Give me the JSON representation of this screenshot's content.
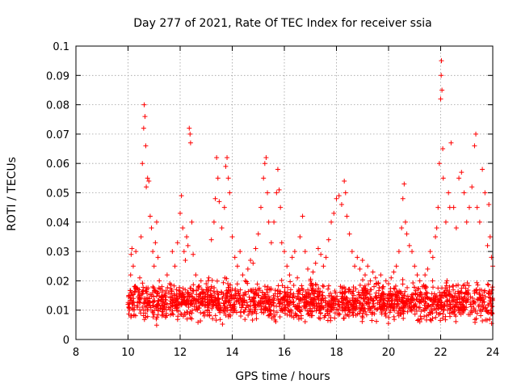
{
  "chart_data": {
    "type": "scatter",
    "title": "Day 277 of 2021, Rate Of TEC Index for receiver ssia",
    "xlabel": "GPS time / hours",
    "ylabel": "ROTI / TECUs",
    "xlim": [
      8,
      24
    ],
    "ylim": [
      0,
      0.1
    ],
    "xticks": [
      8,
      10,
      12,
      14,
      16,
      18,
      20,
      22,
      24
    ],
    "xtick_labels": [
      "8",
      "10",
      "12",
      "14",
      "16",
      "18",
      "20",
      "22",
      "24"
    ],
    "yticks": [
      0,
      0.01,
      0.02,
      0.03,
      0.04,
      0.05,
      0.06,
      0.07,
      0.08,
      0.09,
      0.1
    ],
    "ytick_labels": [
      "0",
      "0.01",
      "0.02",
      "0.03",
      "0.04",
      "0.05",
      "0.06",
      "0.07",
      "0.08",
      "0.09",
      "0.1"
    ],
    "grid": true,
    "marker": "+",
    "series": [
      {
        "name": "ROTI",
        "color": "#ff0000",
        "points": [
          [
            10.0,
            0.012
          ],
          [
            10.05,
            0.015
          ],
          [
            10.1,
            0.022
          ],
          [
            10.12,
            0.029
          ],
          [
            10.15,
            0.031
          ],
          [
            10.2,
            0.025
          ],
          [
            10.25,
            0.018
          ],
          [
            10.3,
            0.03
          ],
          [
            10.35,
            0.011
          ],
          [
            10.4,
            0.016
          ],
          [
            10.45,
            0.021
          ],
          [
            10.5,
            0.035
          ],
          [
            10.55,
            0.06
          ],
          [
            10.6,
            0.072
          ],
          [
            10.62,
            0.08
          ],
          [
            10.65,
            0.076
          ],
          [
            10.68,
            0.066
          ],
          [
            10.7,
            0.052
          ],
          [
            10.75,
            0.055
          ],
          [
            10.8,
            0.054
          ],
          [
            10.85,
            0.042
          ],
          [
            10.9,
            0.038
          ],
          [
            10.95,
            0.03
          ],
          [
            11.0,
            0.025
          ],
          [
            11.05,
            0.033
          ],
          [
            11.1,
            0.04
          ],
          [
            11.15,
            0.028
          ],
          [
            11.2,
            0.02
          ],
          [
            11.3,
            0.018
          ],
          [
            11.4,
            0.015
          ],
          [
            11.5,
            0.022
          ],
          [
            11.6,
            0.019
          ],
          [
            11.7,
            0.03
          ],
          [
            11.8,
            0.025
          ],
          [
            11.9,
            0.033
          ],
          [
            12.0,
            0.043
          ],
          [
            12.05,
            0.049
          ],
          [
            12.1,
            0.038
          ],
          [
            12.15,
            0.03
          ],
          [
            12.2,
            0.027
          ],
          [
            12.25,
            0.035
          ],
          [
            12.3,
            0.032
          ],
          [
            12.35,
            0.072
          ],
          [
            12.38,
            0.07
          ],
          [
            12.4,
            0.067
          ],
          [
            12.45,
            0.04
          ],
          [
            12.5,
            0.029
          ],
          [
            12.6,
            0.022
          ],
          [
            12.7,
            0.018
          ],
          [
            12.8,
            0.02
          ],
          [
            12.9,
            0.016
          ],
          [
            13.0,
            0.019
          ],
          [
            13.1,
            0.021
          ],
          [
            13.2,
            0.034
          ],
          [
            13.3,
            0.04
          ],
          [
            13.35,
            0.048
          ],
          [
            13.4,
            0.062
          ],
          [
            13.45,
            0.055
          ],
          [
            13.5,
            0.047
          ],
          [
            13.6,
            0.038
          ],
          [
            13.7,
            0.045
          ],
          [
            13.75,
            0.059
          ],
          [
            13.8,
            0.062
          ],
          [
            13.85,
            0.055
          ],
          [
            13.9,
            0.05
          ],
          [
            14.0,
            0.035
          ],
          [
            14.1,
            0.028
          ],
          [
            14.2,
            0.025
          ],
          [
            14.3,
            0.03
          ],
          [
            14.4,
            0.022
          ],
          [
            14.5,
            0.02
          ],
          [
            14.6,
            0.024
          ],
          [
            14.7,
            0.027
          ],
          [
            14.8,
            0.026
          ],
          [
            14.9,
            0.031
          ],
          [
            15.0,
            0.036
          ],
          [
            15.1,
            0.045
          ],
          [
            15.2,
            0.055
          ],
          [
            15.25,
            0.06
          ],
          [
            15.3,
            0.062
          ],
          [
            15.35,
            0.05
          ],
          [
            15.4,
            0.04
          ],
          [
            15.5,
            0.033
          ],
          [
            15.6,
            0.04
          ],
          [
            15.7,
            0.05
          ],
          [
            15.75,
            0.058
          ],
          [
            15.8,
            0.051
          ],
          [
            15.85,
            0.045
          ],
          [
            15.9,
            0.033
          ],
          [
            16.0,
            0.03
          ],
          [
            16.1,
            0.025
          ],
          [
            16.2,
            0.022
          ],
          [
            16.3,
            0.028
          ],
          [
            16.4,
            0.03
          ],
          [
            16.5,
            0.021
          ],
          [
            16.6,
            0.035
          ],
          [
            16.7,
            0.042
          ],
          [
            16.8,
            0.03
          ],
          [
            16.9,
            0.024
          ],
          [
            17.0,
            0.02
          ],
          [
            17.1,
            0.023
          ],
          [
            17.2,
            0.026
          ],
          [
            17.3,
            0.031
          ],
          [
            17.4,
            0.029
          ],
          [
            17.5,
            0.025
          ],
          [
            17.6,
            0.028
          ],
          [
            17.7,
            0.034
          ],
          [
            17.8,
            0.04
          ],
          [
            17.9,
            0.043
          ],
          [
            18.0,
            0.048
          ],
          [
            18.1,
            0.049
          ],
          [
            18.2,
            0.046
          ],
          [
            18.3,
            0.054
          ],
          [
            18.35,
            0.05
          ],
          [
            18.4,
            0.042
          ],
          [
            18.5,
            0.036
          ],
          [
            18.6,
            0.03
          ],
          [
            18.7,
            0.025
          ],
          [
            18.8,
            0.028
          ],
          [
            18.9,
            0.024
          ],
          [
            19.0,
            0.027
          ],
          [
            19.1,
            0.022
          ],
          [
            19.2,
            0.025
          ],
          [
            19.3,
            0.02
          ],
          [
            19.4,
            0.023
          ],
          [
            19.5,
            0.021
          ],
          [
            19.6,
            0.019
          ],
          [
            19.7,
            0.022
          ],
          [
            19.8,
            0.018
          ],
          [
            19.9,
            0.02
          ],
          [
            20.0,
            0.019
          ],
          [
            20.1,
            0.021
          ],
          [
            20.2,
            0.023
          ],
          [
            20.3,
            0.025
          ],
          [
            20.4,
            0.03
          ],
          [
            20.5,
            0.038
          ],
          [
            20.55,
            0.048
          ],
          [
            20.6,
            0.053
          ],
          [
            20.65,
            0.04
          ],
          [
            20.7,
            0.036
          ],
          [
            20.8,
            0.032
          ],
          [
            20.9,
            0.03
          ],
          [
            21.0,
            0.025
          ],
          [
            21.1,
            0.022
          ],
          [
            21.2,
            0.02
          ],
          [
            21.3,
            0.018
          ],
          [
            21.4,
            0.022
          ],
          [
            21.5,
            0.024
          ],
          [
            21.6,
            0.03
          ],
          [
            21.7,
            0.028
          ],
          [
            21.8,
            0.035
          ],
          [
            21.85,
            0.038
          ],
          [
            21.9,
            0.045
          ],
          [
            21.95,
            0.06
          ],
          [
            22.0,
            0.082
          ],
          [
            22.02,
            0.09
          ],
          [
            22.03,
            0.095
          ],
          [
            22.05,
            0.085
          ],
          [
            22.08,
            0.065
          ],
          [
            22.1,
            0.055
          ],
          [
            22.2,
            0.04
          ],
          [
            22.3,
            0.05
          ],
          [
            22.35,
            0.045
          ],
          [
            22.4,
            0.067
          ],
          [
            22.5,
            0.045
          ],
          [
            22.6,
            0.038
          ],
          [
            22.7,
            0.055
          ],
          [
            22.8,
            0.057
          ],
          [
            22.9,
            0.05
          ],
          [
            23.0,
            0.04
          ],
          [
            23.1,
            0.045
          ],
          [
            23.2,
            0.052
          ],
          [
            23.3,
            0.066
          ],
          [
            23.35,
            0.07
          ],
          [
            23.4,
            0.045
          ],
          [
            23.5,
            0.04
          ],
          [
            23.6,
            0.058
          ],
          [
            23.7,
            0.05
          ],
          [
            23.8,
            0.032
          ],
          [
            23.85,
            0.046
          ],
          [
            23.9,
            0.035
          ],
          [
            23.95,
            0.028
          ],
          [
            24.0,
            0.025
          ]
        ],
        "baseline_band": {
          "x_range": [
            10.0,
            24.0
          ],
          "y_range": [
            0.004,
            0.022
          ],
          "description": "dense cluster of points"
        }
      }
    ]
  }
}
